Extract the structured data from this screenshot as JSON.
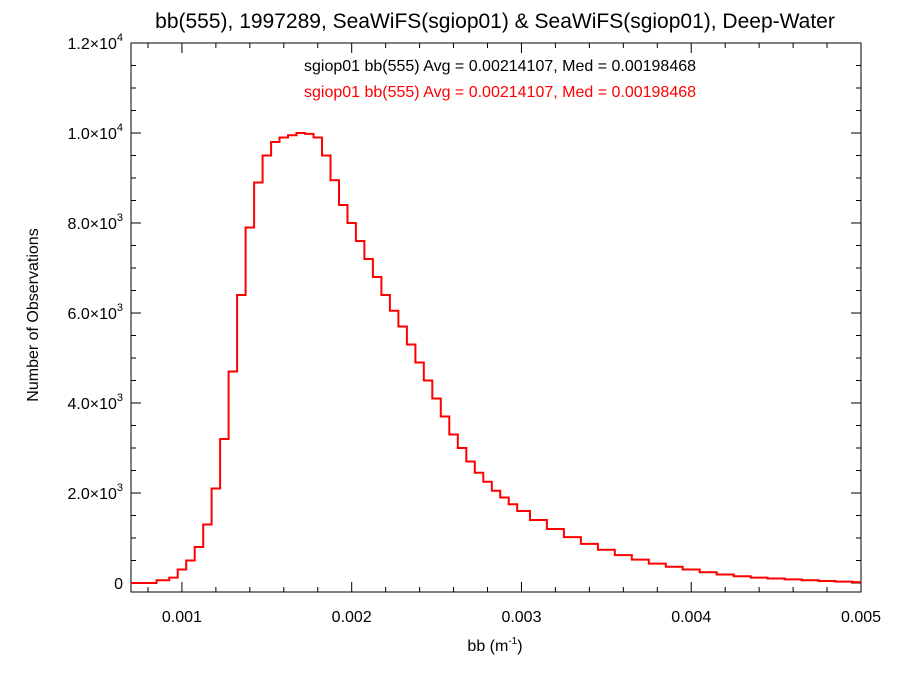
{
  "chart_data": {
    "type": "line",
    "title": "bb(555), 1997289, SeaWiFS(sgiop01) & SeaWiFS(sgiop01), Deep-Water",
    "xlabel_main": "bb (m",
    "xlabel_sup": "-1",
    "xlabel_close": ")",
    "ylabel": "Number of Observations",
    "xlim": [
      0.0007,
      0.005
    ],
    "ylim": [
      -200,
      12000
    ],
    "x_ticks": [
      {
        "value": 0.001,
        "label": "0.001"
      },
      {
        "value": 0.002,
        "label": "0.002"
      },
      {
        "value": 0.003,
        "label": "0.003"
      },
      {
        "value": 0.004,
        "label": "0.004"
      },
      {
        "value": 0.005,
        "label": "0.005"
      }
    ],
    "y_ticks": [
      {
        "value": 0,
        "mant": "0",
        "exp": ""
      },
      {
        "value": 2000,
        "mant": "2.0×10",
        "exp": "3"
      },
      {
        "value": 4000,
        "mant": "4.0×10",
        "exp": "3"
      },
      {
        "value": 6000,
        "mant": "6.0×10",
        "exp": "3"
      },
      {
        "value": 8000,
        "mant": "8.0×10",
        "exp": "3"
      },
      {
        "value": 10000,
        "mant": "1.0×10",
        "exp": "4"
      },
      {
        "value": 12000,
        "mant": "1.2×10",
        "exp": "4"
      }
    ],
    "annotations": [
      {
        "text": "sgiop01 bb(555) Avg = 0.00214107, Med = 0.00198468",
        "color": "#000000"
      },
      {
        "text": "sgiop01 bb(555) Avg = 0.00214107, Med = 0.00198468",
        "color": "#ff0000"
      }
    ],
    "series": [
      {
        "color": "#ff0000",
        "x": [
          0.0007,
          0.0008,
          0.0009,
          0.00095,
          0.001,
          0.00105,
          0.0011,
          0.00115,
          0.0012,
          0.00125,
          0.0013,
          0.00135,
          0.0014,
          0.00145,
          0.0015,
          0.00155,
          0.0016,
          0.00165,
          0.0017,
          0.00175,
          0.0018,
          0.00185,
          0.0019,
          0.00195,
          0.002,
          0.00205,
          0.0021,
          0.00215,
          0.0022,
          0.00225,
          0.0023,
          0.00235,
          0.0024,
          0.00245,
          0.0025,
          0.00255,
          0.0026,
          0.00265,
          0.0027,
          0.00275,
          0.0028,
          0.00285,
          0.0029,
          0.00295,
          0.003,
          0.0031,
          0.0032,
          0.0033,
          0.0034,
          0.0035,
          0.0036,
          0.0037,
          0.0038,
          0.0039,
          0.004,
          0.0041,
          0.0042,
          0.0043,
          0.0044,
          0.0045,
          0.0046,
          0.0047,
          0.0048,
          0.0049,
          0.005
        ],
        "y": [
          0,
          0,
          60,
          120,
          300,
          500,
          800,
          1300,
          2100,
          3200,
          4700,
          6400,
          7900,
          8900,
          9500,
          9800,
          9900,
          9950,
          10000,
          9980,
          9900,
          9500,
          8950,
          8400,
          8000,
          7600,
          7200,
          6800,
          6400,
          6050,
          5700,
          5300,
          4900,
          4500,
          4100,
          3700,
          3300,
          3000,
          2700,
          2450,
          2250,
          2050,
          1900,
          1750,
          1600,
          1400,
          1200,
          1020,
          870,
          740,
          620,
          520,
          430,
          360,
          300,
          240,
          190,
          150,
          120,
          100,
          80,
          60,
          45,
          30,
          20
        ]
      }
    ]
  }
}
